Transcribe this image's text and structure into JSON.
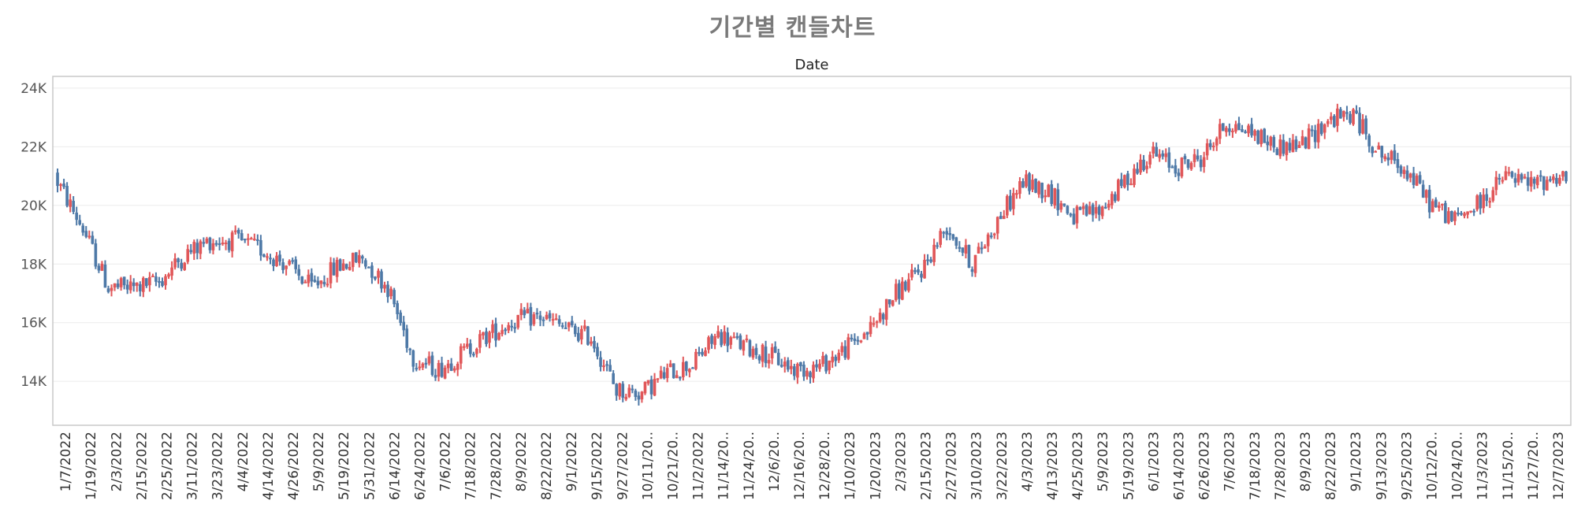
{
  "title": "기간별 캔들차트",
  "chart_data": {
    "type": "candlestick",
    "title": "기간별 캔들차트",
    "xlabel": "Date",
    "ylabel": "",
    "ylim": [
      12500,
      24400
    ],
    "y_ticks": [
      {
        "value": 14000,
        "label": "14K"
      },
      {
        "value": 16000,
        "label": "16K"
      },
      {
        "value": 18000,
        "label": "18K"
      },
      {
        "value": 20000,
        "label": "20K"
      },
      {
        "value": 22000,
        "label": "22K"
      },
      {
        "value": 24000,
        "label": "24K"
      }
    ],
    "x_ticks": [
      "1/7/2022",
      "1/19/2022",
      "2/3/2022",
      "2/15/2022",
      "2/25/2022",
      "3/11/2022",
      "3/23/2022",
      "4/4/2022",
      "4/14/2022",
      "4/26/2022",
      "5/9/2022",
      "5/19/2022",
      "5/31/2022",
      "6/14/2022",
      "6/24/2022",
      "7/6/2022",
      "7/18/2022",
      "7/28/2022",
      "8/9/2022",
      "8/22/2022",
      "9/1/2022",
      "9/15/2022",
      "9/27/2022",
      "10/11/20..",
      "10/21/20..",
      "11/2/2022",
      "11/14/20..",
      "11/24/20..",
      "12/6/20..",
      "12/16/20..",
      "12/28/20..",
      "1/10/2023",
      "1/20/2023",
      "2/3/2023",
      "2/15/2023",
      "2/27/2023",
      "3/10/2023",
      "3/22/2023",
      "4/3/2023",
      "4/13/2023",
      "4/25/2023",
      "5/9/2023",
      "5/19/2023",
      "6/1/2023",
      "6/14/2023",
      "6/26/2023",
      "7/6/2023",
      "7/18/2023",
      "7/28/2023",
      "8/9/2023",
      "8/22/2023",
      "9/1/2023",
      "9/13/2023",
      "9/25/2023",
      "10/12/20..",
      "10/24/20..",
      "11/3/2023",
      "11/15/20..",
      "11/27/20..",
      "12/7/2023"
    ],
    "path_ticks": [
      20800,
      19200,
      17200,
      17200,
      17400,
      18300,
      18800,
      18800,
      18500,
      18000,
      17200,
      17900,
      18200,
      17200,
      14800,
      14400,
      15000,
      15600,
      16100,
      16200,
      15800,
      15500,
      13700,
      13600,
      14300,
      14600,
      15600,
      15200,
      14900,
      14400,
      14500,
      15100,
      15800,
      17000,
      17800,
      19300,
      18000,
      19500,
      20800,
      20500,
      19600,
      19800,
      20800,
      21800,
      21300,
      21600,
      22800,
      22500,
      22000,
      22100,
      22900,
      23100,
      21800,
      21300,
      20100,
      19500,
      20100,
      21000,
      20700,
      21000
    ],
    "up_color": "#e15759",
    "down_color": "#4e79a7",
    "grid": true,
    "legend": "none"
  }
}
